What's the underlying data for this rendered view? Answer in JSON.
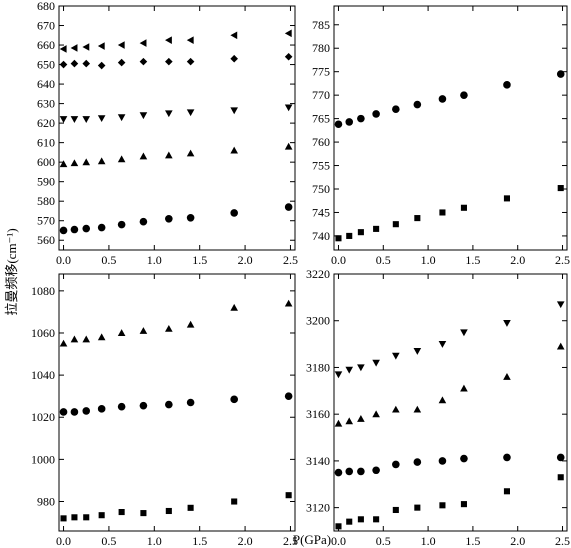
{
  "figure": {
    "xlabel": "P(GPa)",
    "ylabel": "拉曼频移(cm⁻¹)"
  },
  "chart_data": [
    {
      "type": "scatter",
      "panel": "top-left",
      "xlim": [
        -0.05,
        2.55
      ],
      "ylim": [
        555,
        680
      ],
      "xticks": [
        0.0,
        0.5,
        1.0,
        1.5,
        2.0,
        2.5
      ],
      "yticks": [
        560,
        570,
        580,
        590,
        600,
        610,
        620,
        630,
        640,
        650,
        660,
        670,
        680
      ],
      "x": [
        0.0,
        0.12,
        0.25,
        0.42,
        0.64,
        0.88,
        1.16,
        1.4,
        1.88,
        2.48
      ],
      "series": [
        {
          "marker": "triangle-left",
          "values": [
            658,
            658.5,
            659,
            659.5,
            660,
            661,
            662.5,
            662.5,
            665,
            666
          ]
        },
        {
          "marker": "diamond",
          "values": [
            650,
            650.5,
            650.5,
            649.5,
            651,
            651.5,
            651.5,
            651.5,
            653,
            654
          ]
        },
        {
          "marker": "triangle-down",
          "values": [
            622,
            622,
            622,
            622.5,
            623,
            624,
            625,
            625.5,
            626.5,
            628
          ]
        },
        {
          "marker": "triangle-up",
          "values": [
            599,
            599.5,
            600,
            600.5,
            601.5,
            603,
            603.5,
            604.5,
            606,
            608
          ]
        },
        {
          "marker": "circle",
          "values": [
            565,
            565.5,
            566,
            566.5,
            568,
            569.5,
            571,
            571.5,
            574,
            577
          ]
        }
      ]
    },
    {
      "type": "scatter",
      "panel": "top-right",
      "xlim": [
        -0.05,
        2.55
      ],
      "ylim": [
        737,
        789
      ],
      "xticks": [
        0.0,
        0.5,
        1.0,
        1.5,
        2.0,
        2.5
      ],
      "yticks": [
        740,
        745,
        750,
        755,
        760,
        765,
        770,
        775,
        780,
        785
      ],
      "x": [
        0.0,
        0.12,
        0.25,
        0.42,
        0.64,
        0.88,
        1.16,
        1.4,
        1.88,
        2.48
      ],
      "series": [
        {
          "marker": "circle",
          "values": [
            763.8,
            764.3,
            765,
            766,
            767,
            768,
            769.2,
            770,
            772.2,
            774.5
          ]
        },
        {
          "marker": "square",
          "values": [
            739.5,
            740,
            740.8,
            741.5,
            742.5,
            743.8,
            745,
            746,
            748,
            750.2
          ]
        }
      ]
    },
    {
      "type": "scatter",
      "panel": "bottom-left",
      "xlim": [
        -0.05,
        2.55
      ],
      "ylim": [
        966,
        1088
      ],
      "xticks": [
        0.0,
        0.5,
        1.0,
        1.5,
        2.0,
        2.5
      ],
      "yticks": [
        980,
        1000,
        1020,
        1040,
        1060,
        1080
      ],
      "x": [
        0.0,
        0.12,
        0.25,
        0.42,
        0.64,
        0.88,
        1.16,
        1.4,
        1.88,
        2.48
      ],
      "series": [
        {
          "marker": "triangle-up",
          "values": [
            1055,
            1057,
            1057,
            1058,
            1060,
            1061,
            1062,
            1064,
            1072,
            1074
          ]
        },
        {
          "marker": "circle",
          "values": [
            1022.5,
            1022.5,
            1023,
            1024,
            1025,
            1025.5,
            1026,
            1027,
            1028.5,
            1030
          ]
        },
        {
          "marker": "square",
          "values": [
            972,
            972.5,
            972.5,
            973.5,
            975,
            974.5,
            975.5,
            977,
            980,
            983
          ]
        }
      ]
    },
    {
      "type": "scatter",
      "panel": "bottom-right",
      "xlim": [
        -0.05,
        2.55
      ],
      "ylim": [
        3110,
        3220
      ],
      "xticks": [
        0.0,
        0.5,
        1.0,
        1.5,
        2.0,
        2.5
      ],
      "yticks": [
        3120,
        3140,
        3160,
        3180,
        3200,
        3220
      ],
      "x": [
        0.0,
        0.12,
        0.25,
        0.42,
        0.64,
        0.88,
        1.16,
        1.4,
        1.88,
        2.48
      ],
      "series": [
        {
          "marker": "triangle-down",
          "values": [
            3177,
            3179,
            3180,
            3182,
            3185,
            3187,
            3190,
            3195,
            3199,
            3207
          ]
        },
        {
          "marker": "triangle-up",
          "values": [
            3156,
            3157,
            3158,
            3160,
            3162,
            3162,
            3166,
            3171,
            3176,
            3189
          ]
        },
        {
          "marker": "circle",
          "values": [
            3135,
            3135.5,
            3135.5,
            3136,
            3138.5,
            3139.5,
            3140,
            3141,
            3141.5,
            3141.5
          ]
        },
        {
          "marker": "square",
          "values": [
            3112,
            3114,
            3115,
            3115,
            3119,
            3120,
            3121,
            3121.5,
            3127,
            3133
          ]
        }
      ]
    }
  ]
}
